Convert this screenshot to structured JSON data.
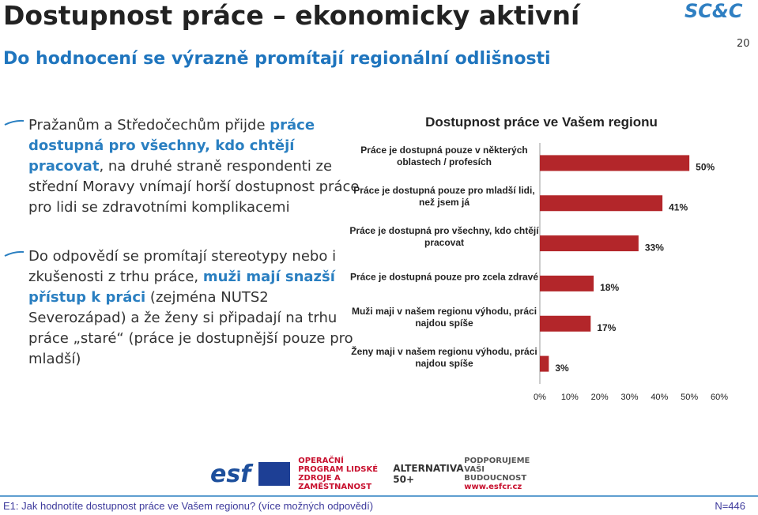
{
  "title": "Dostupnost práce – ekonomicky aktivní",
  "subtitle": "Do hodnocení se výrazně promítají regionální odlišnosti",
  "page_number": "20",
  "brand": "SC&C",
  "bullets": [
    [
      {
        "text": "Pražanům a Středočechům přijde "
      },
      {
        "text": "práce dostupná pro všechny, kdo chtějí pracovat",
        "emphasis": true
      },
      {
        "text": ", na druhé straně respondenti ze střední Moravy vnímají horší dostupnost práce pro lidi se zdravotními komplikacemi"
      }
    ],
    [
      {
        "text": "Do odpovědí se promítají stereotypy nebo i zkušenosti z trhu práce, "
      },
      {
        "text": "muži mají snazší přístup k práci",
        "emphasis": true
      },
      {
        "text": " (zejména NUTS2 Severozápad) a že ženy si připadají na trhu práce „staré“ (práce je dostupnější pouze pro mladší)"
      }
    ]
  ],
  "chart_data": {
    "type": "bar",
    "orientation": "horizontal",
    "title": "Dostupnost práce ve Vašem regionu",
    "categories": [
      "Práce je dostupná pouze v některých oblastech / profesích",
      "Práce je dostupná pouze pro mladší lidi, než jsem já",
      "Práce je dostupná pro všechny, kdo chtějí pracovat",
      "Práce je dostupná pouze pro zcela zdravé",
      "Muži maji v našem regionu výhodu, práci najdou spíše",
      "Ženy maji v našem regionu výhodu, práci najdou spíše"
    ],
    "values": [
      50,
      41,
      33,
      18,
      17,
      3
    ],
    "value_labels": [
      "50%",
      "41%",
      "33%",
      "18%",
      "17%",
      "3%"
    ],
    "color": "#b3262a",
    "xlim": [
      0,
      60
    ],
    "xticks": [
      {
        "value": 0,
        "label": "0%"
      },
      {
        "value": 10,
        "label": "10%"
      },
      {
        "value": 20,
        "label": "20%"
      },
      {
        "value": 30,
        "label": "30%"
      },
      {
        "value": 40,
        "label": "40%"
      },
      {
        "value": 50,
        "label": "50%"
      },
      {
        "value": 60,
        "label": "60%"
      }
    ]
  },
  "logos": [
    "esf",
    "OPERAČNÍ PROGRAM LIDSKÉ ZDROJE A ZAMĚSTNANOST",
    "ALTERNATIVA 50+",
    "PODPORUJEME VAŠI BUDOUCNOST",
    "www.esfcr.cz"
  ],
  "footer": {
    "question": "E1: Jak hodnotíte dostupnost práce ve Vašem regionu? (více možných odpovědí)",
    "n": "N=446"
  }
}
